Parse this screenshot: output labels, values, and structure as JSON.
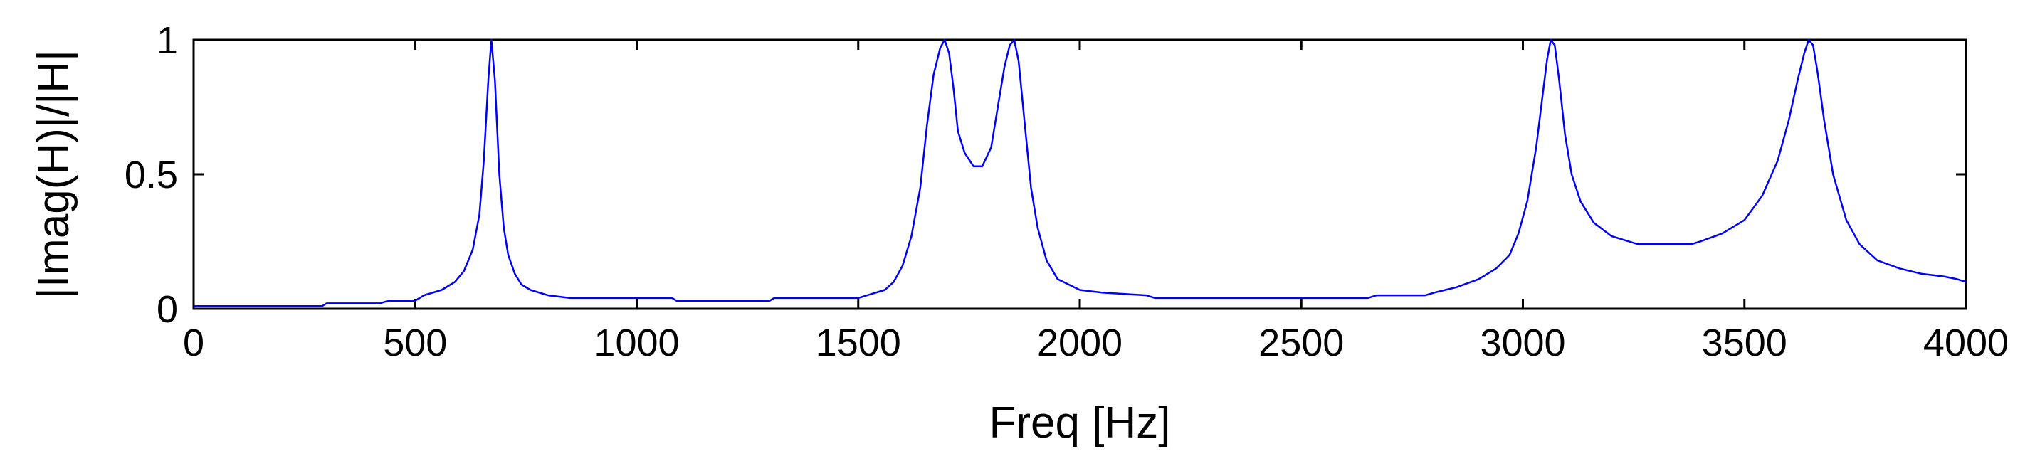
{
  "chart_data": {
    "type": "line",
    "title": "",
    "xlabel": "Freq [Hz]",
    "ylabel": "|Imag(H)|/|H|",
    "xlim": [
      0,
      4000
    ],
    "ylim": [
      0,
      1
    ],
    "xticks": [
      0,
      500,
      1000,
      1500,
      2000,
      2500,
      3000,
      3500,
      4000
    ],
    "yticks": [
      0,
      0.5,
      1
    ],
    "xtick_labels": [
      "0",
      "500",
      "1000",
      "1500",
      "2000",
      "2500",
      "3000",
      "3500",
      "4000"
    ],
    "ytick_labels": [
      "0",
      "0.5",
      "1"
    ],
    "grid": false,
    "legend": "none",
    "line_color": "#0000ff",
    "series": [
      {
        "x": [
          0,
          290,
          300,
          420,
          440,
          500,
          520,
          560,
          590,
          610,
          630,
          645,
          655,
          665,
          672,
          680,
          690,
          700,
          710,
          725,
          740,
          760,
          800,
          850,
          900,
          1000,
          1080,
          1090,
          1300,
          1310,
          1500,
          1520,
          1560,
          1580,
          1600,
          1620,
          1640,
          1655,
          1670,
          1685,
          1695,
          1705,
          1715,
          1725,
          1740,
          1760,
          1780,
          1800,
          1815,
          1830,
          1842,
          1852,
          1862,
          1875,
          1890,
          1905,
          1925,
          1950,
          2000,
          2050,
          2150,
          2170,
          2300,
          2500,
          2650,
          2670,
          2780,
          2800,
          2850,
          2900,
          2940,
          2970,
          2990,
          3010,
          3030,
          3045,
          3055,
          3063,
          3072,
          3082,
          3095,
          3110,
          3130,
          3160,
          3200,
          3260,
          3380,
          3400,
          3450,
          3500,
          3540,
          3575,
          3600,
          3620,
          3635,
          3645,
          3655,
          3665,
          3680,
          3700,
          3730,
          3760,
          3800,
          3850,
          3900,
          3950,
          3980,
          4000
        ],
        "values": [
          0.01,
          0.01,
          0.02,
          0.02,
          0.03,
          0.03,
          0.05,
          0.07,
          0.1,
          0.14,
          0.22,
          0.35,
          0.55,
          0.85,
          1.0,
          0.85,
          0.5,
          0.3,
          0.2,
          0.13,
          0.09,
          0.07,
          0.05,
          0.04,
          0.04,
          0.04,
          0.04,
          0.03,
          0.03,
          0.04,
          0.04,
          0.05,
          0.07,
          0.1,
          0.16,
          0.27,
          0.45,
          0.68,
          0.87,
          0.97,
          1.0,
          0.95,
          0.82,
          0.66,
          0.58,
          0.53,
          0.53,
          0.6,
          0.75,
          0.9,
          0.98,
          1.0,
          0.92,
          0.7,
          0.45,
          0.3,
          0.18,
          0.11,
          0.07,
          0.06,
          0.05,
          0.04,
          0.04,
          0.04,
          0.04,
          0.05,
          0.05,
          0.06,
          0.08,
          0.11,
          0.15,
          0.2,
          0.28,
          0.4,
          0.6,
          0.8,
          0.93,
          1.0,
          0.98,
          0.85,
          0.65,
          0.5,
          0.4,
          0.32,
          0.27,
          0.24,
          0.24,
          0.25,
          0.28,
          0.33,
          0.42,
          0.55,
          0.7,
          0.85,
          0.95,
          1.0,
          0.98,
          0.88,
          0.7,
          0.5,
          0.33,
          0.24,
          0.18,
          0.15,
          0.13,
          0.12,
          0.11,
          0.1
        ]
      }
    ]
  }
}
